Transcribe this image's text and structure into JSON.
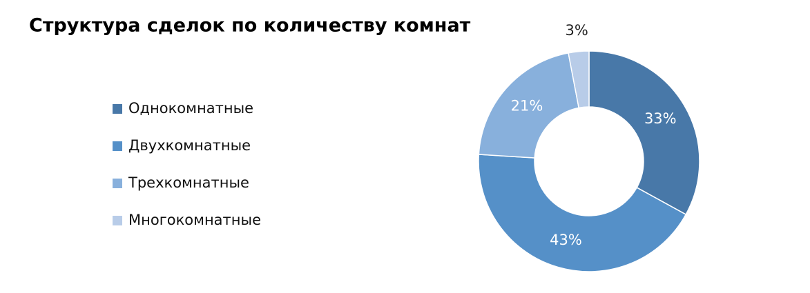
{
  "chart_data": {
    "type": "donut",
    "title": "Структура сделок по количеству комнат",
    "categories": [
      "Однокомнатные",
      "Двухкомнатные",
      "Трехкомнатные",
      "Многокомнатные"
    ],
    "values": [
      33,
      43,
      21,
      3
    ],
    "value_labels": [
      "33%",
      "43%",
      "21%",
      "3%"
    ],
    "colors": [
      "#4878a8",
      "#5590c8",
      "#88b0dc",
      "#b8cce8"
    ],
    "legend": "left"
  }
}
